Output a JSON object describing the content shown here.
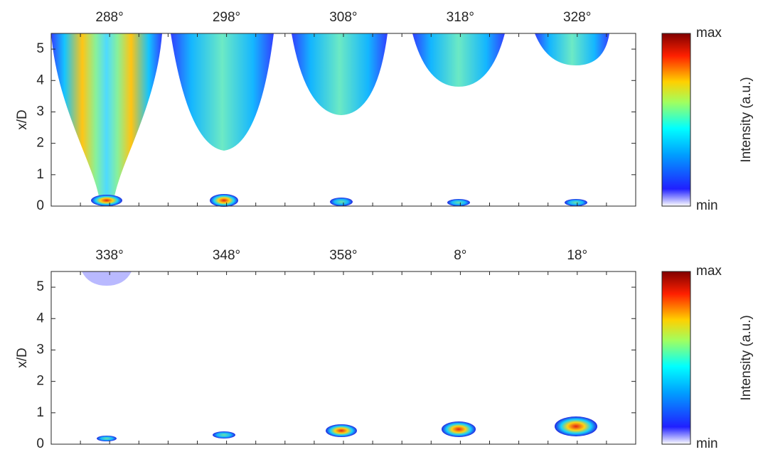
{
  "chart_data": [
    {
      "type": "image",
      "ylabel": "x/D",
      "ylim": [
        0,
        5.5
      ],
      "yticks": [
        0,
        1,
        2,
        3,
        4,
        5
      ],
      "frames": [
        "288°",
        "298°",
        "308°",
        "318°",
        "328°"
      ],
      "colorbar": {
        "label": "Intensity (a.u.)",
        "ticks": [
          "min",
          "max"
        ]
      }
    },
    {
      "type": "image",
      "ylabel": "x/D",
      "ylim": [
        0,
        5.5
      ],
      "yticks": [
        0,
        1,
        2,
        3,
        4,
        5
      ],
      "frames": [
        "338°",
        "348°",
        "358°",
        "8°",
        "18°"
      ],
      "colorbar": {
        "label": "Intensity (a.u.)",
        "ticks": [
          "min",
          "max"
        ]
      }
    }
  ]
}
